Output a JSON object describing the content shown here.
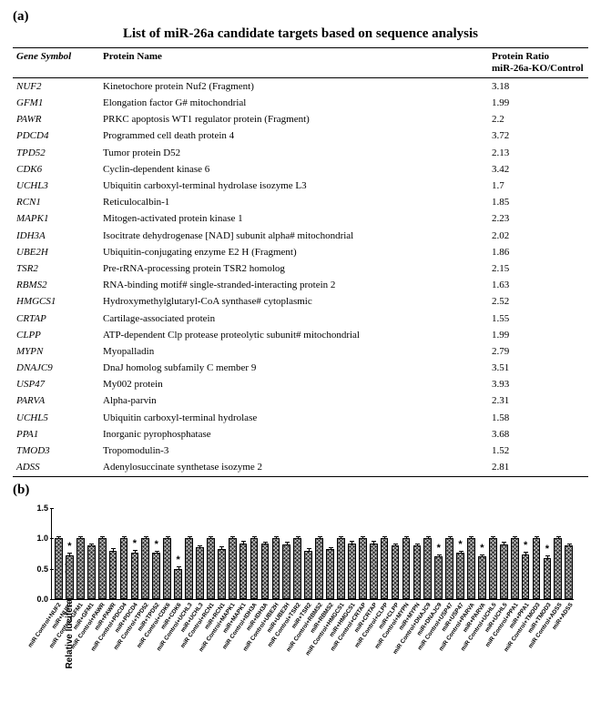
{
  "panelA": {
    "label": "(a)",
    "title": "List of miR-26a candidate targets based on sequence analysis",
    "columns": {
      "gene": "Gene Symbol",
      "protein": "Protein Name",
      "ratio_line1": "Protein Ratio",
      "ratio_line2": "miR-26a-KO/Control"
    },
    "rows": [
      {
        "gene": "NUF2",
        "protein": "Kinetochore protein Nuf2 (Fragment)",
        "ratio": "3.18"
      },
      {
        "gene": "GFM1",
        "protein": "Elongation factor G# mitochondrial",
        "ratio": "1.99"
      },
      {
        "gene": "PAWR",
        "protein": "PRKC apoptosis WT1 regulator protein (Fragment)",
        "ratio": "2.2"
      },
      {
        "gene": "PDCD4",
        "protein": "Programmed cell death protein 4",
        "ratio": "3.72"
      },
      {
        "gene": "TPD52",
        "protein": "Tumor protein D52",
        "ratio": "2.13"
      },
      {
        "gene": "CDK6",
        "protein": "Cyclin-dependent kinase 6",
        "ratio": "3.42"
      },
      {
        "gene": "UCHL3",
        "protein": "Ubiquitin carboxyl-terminal hydrolase isozyme L3",
        "ratio": "1.7"
      },
      {
        "gene": "RCN1",
        "protein": "Reticulocalbin-1",
        "ratio": "1.85"
      },
      {
        "gene": "MAPK1",
        "protein": "Mitogen-activated protein kinase 1",
        "ratio": "2.23"
      },
      {
        "gene": "IDH3A",
        "protein": "Isocitrate dehydrogenase [NAD] subunit alpha# mitochondrial",
        "ratio": "2.02"
      },
      {
        "gene": "UBE2H",
        "protein": "Ubiquitin-conjugating enzyme E2 H (Fragment)",
        "ratio": "1.86"
      },
      {
        "gene": "TSR2",
        "protein": "Pre-rRNA-processing protein TSR2 homolog",
        "ratio": "2.15"
      },
      {
        "gene": "RBMS2",
        "protein": "RNA-binding motif# single-stranded-interacting protein 2",
        "ratio": "1.63"
      },
      {
        "gene": "HMGCS1",
        "protein": "Hydroxymethylglutaryl-CoA synthase# cytoplasmic",
        "ratio": "2.52"
      },
      {
        "gene": "CRTAP",
        "protein": "Cartilage-associated protein",
        "ratio": "1.55"
      },
      {
        "gene": "CLPP",
        "protein": "ATP-dependent Clp protease proteolytic subunit# mitochondrial",
        "ratio": "1.99"
      },
      {
        "gene": "MYPN",
        "protein": "Myopalladin",
        "ratio": "2.79"
      },
      {
        "gene": "DNAJC9",
        "protein": "DnaJ homolog subfamily C member 9",
        "ratio": "3.51"
      },
      {
        "gene": "USP47",
        "protein": "My002 protein",
        "ratio": "3.93"
      },
      {
        "gene": "PARVA",
        "protein": "Alpha-parvin",
        "ratio": "2.31"
      },
      {
        "gene": "UCHL5",
        "protein": "Ubiquitin carboxyl-terminal hydrolase",
        "ratio": "1.58"
      },
      {
        "gene": "PPA1",
        "protein": "Inorganic pyrophosphatase",
        "ratio": "3.68"
      },
      {
        "gene": "TMOD3",
        "protein": "Tropomodulin-3",
        "ratio": "1.52"
      },
      {
        "gene": "ADSS",
        "protein": "Adenylosuccinate synthetase isozyme 2",
        "ratio": "2.81"
      }
    ]
  },
  "panelB": {
    "label": "(b)",
    "chart": {
      "type": "bar",
      "ylabel": "Relative luciferase activity",
      "ylim": [
        0,
        1.5
      ],
      "yticks": [
        0.0,
        0.5,
        1.0,
        1.5
      ],
      "bar_color": "#2b2b2b",
      "background_color": "#ffffff",
      "error_bar_height": 0.04,
      "bars": [
        {
          "label": "miR Control+NUF2",
          "value": 1.0
        },
        {
          "label": "miR+NUF2",
          "value": 0.72,
          "star": true
        },
        {
          "label": "miR Control+GFM1",
          "value": 1.0
        },
        {
          "label": "miR+GFM1",
          "value": 0.88
        },
        {
          "label": "miR Control+PAWR",
          "value": 1.0
        },
        {
          "label": "miR+PAWR",
          "value": 0.8
        },
        {
          "label": "miR Control+PDCD4",
          "value": 1.0
        },
        {
          "label": "miR+PDCD4",
          "value": 0.77,
          "star": true
        },
        {
          "label": "miR Control+TPD52",
          "value": 1.0
        },
        {
          "label": "miR+TPD52",
          "value": 0.76,
          "star": true
        },
        {
          "label": "miR Control+CDK6",
          "value": 1.0
        },
        {
          "label": "miR+CDK6",
          "value": 0.5,
          "star": true
        },
        {
          "label": "miR Control+UCHL3",
          "value": 1.0
        },
        {
          "label": "miR+UCHL3",
          "value": 0.85
        },
        {
          "label": "miR Control+RCN1",
          "value": 1.0
        },
        {
          "label": "miR+RCN1",
          "value": 0.83
        },
        {
          "label": "miR Control+MAPK1",
          "value": 1.0
        },
        {
          "label": "miR+MAPK1",
          "value": 0.92
        },
        {
          "label": "miR Control+IDH3A",
          "value": 1.0
        },
        {
          "label": "miR+IDH3A",
          "value": 0.91
        },
        {
          "label": "miR Control+UBE2H",
          "value": 1.0
        },
        {
          "label": "miR+UBE2H",
          "value": 0.9
        },
        {
          "label": "miR Control+TSR2",
          "value": 1.0
        },
        {
          "label": "miR+TSR2",
          "value": 0.8
        },
        {
          "label": "miR Control+RBMS2",
          "value": 1.0
        },
        {
          "label": "miR+RBMS2",
          "value": 0.82
        },
        {
          "label": "miR Control+HMGCS1",
          "value": 1.0
        },
        {
          "label": "miR+HMGCS1",
          "value": 0.92
        },
        {
          "label": "miR Control+CRTAP",
          "value": 1.0
        },
        {
          "label": "miR+CRTAP",
          "value": 0.92
        },
        {
          "label": "miR Control+CLPP",
          "value": 1.0
        },
        {
          "label": "miR+CLPP",
          "value": 0.88
        },
        {
          "label": "miR Control+MYPN",
          "value": 1.0
        },
        {
          "label": "miR+MYPN",
          "value": 0.88
        },
        {
          "label": "miR Control+DNAJC9",
          "value": 1.0
        },
        {
          "label": "miR+DNAJC9",
          "value": 0.7,
          "star": true
        },
        {
          "label": "miR Control+USP47",
          "value": 1.0
        },
        {
          "label": "miR+USP47",
          "value": 0.76,
          "star": true
        },
        {
          "label": "miR Control+PARVA",
          "value": 1.0
        },
        {
          "label": "miR+PARVA",
          "value": 0.7,
          "star": true
        },
        {
          "label": "miR Control+UCHL5",
          "value": 1.0
        },
        {
          "label": "miR+UCHL5",
          "value": 0.9
        },
        {
          "label": "miR Control+PPA1",
          "value": 1.0
        },
        {
          "label": "miR+PPA1",
          "value": 0.74,
          "star": true
        },
        {
          "label": "miR Control+TMOD3",
          "value": 1.0
        },
        {
          "label": "miR+TMOD3",
          "value": 0.68,
          "star": true
        },
        {
          "label": "miR Control+ADSS",
          "value": 1.0
        },
        {
          "label": "miR+ADSS",
          "value": 0.88
        }
      ]
    }
  }
}
